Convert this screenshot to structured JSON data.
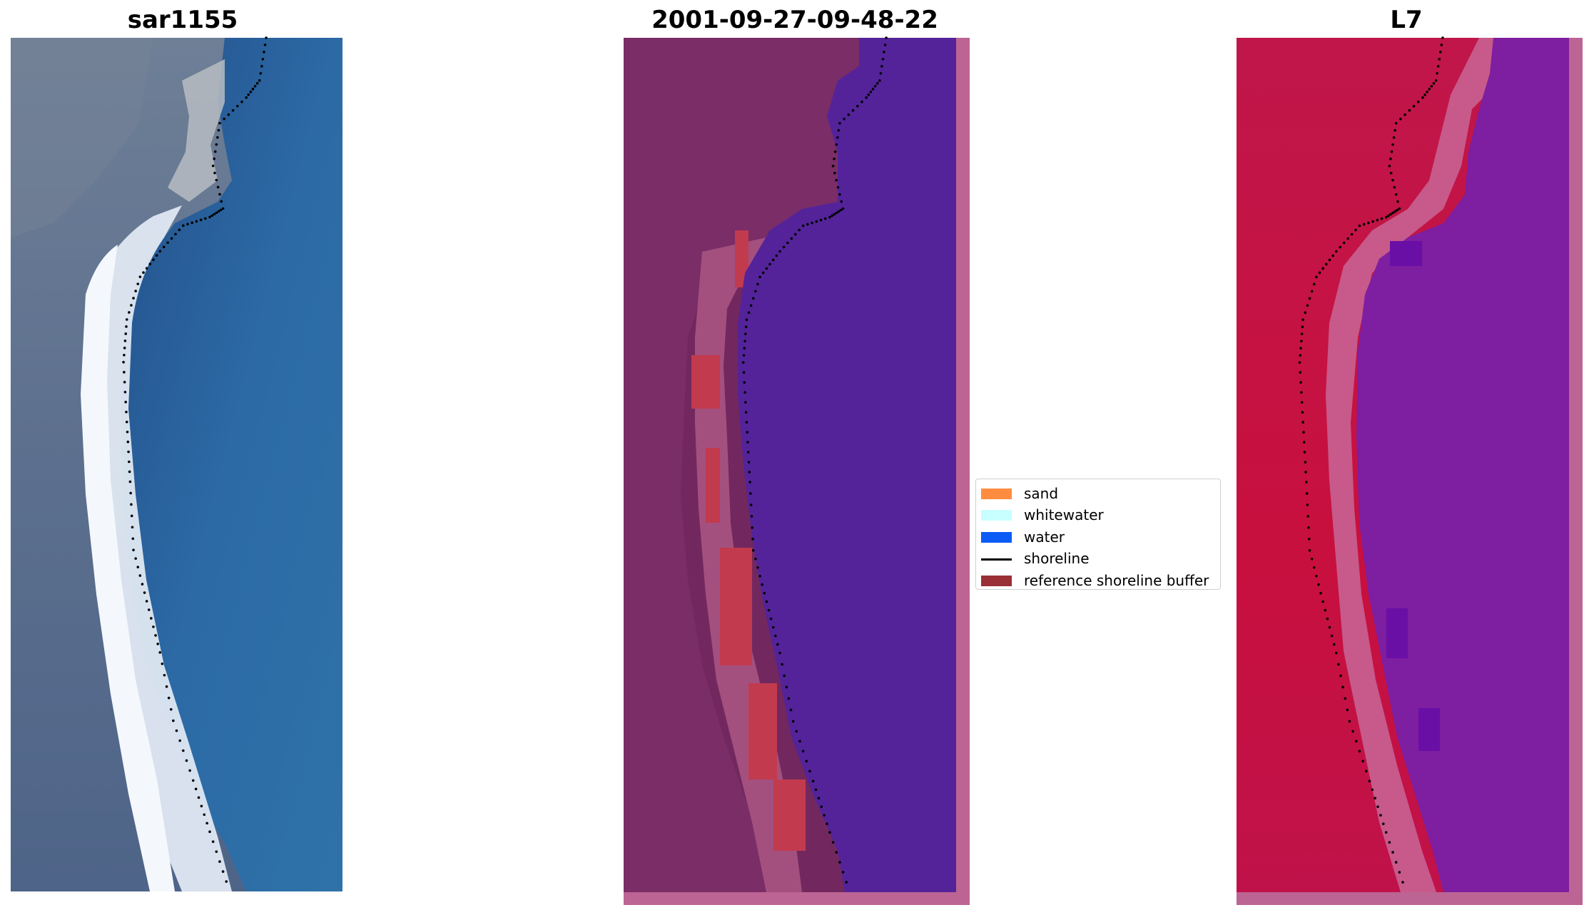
{
  "panels": [
    {
      "title": "sar1155"
    },
    {
      "title": "2001-09-27-09-48-22"
    },
    {
      "title": "L7"
    }
  ],
  "legend": {
    "placement": "center, between middle and right panel",
    "items": [
      {
        "label": "sand",
        "color": "#ff8c3f",
        "kind": "patch"
      },
      {
        "label": "whitewater",
        "color": "#c8ffff",
        "kind": "patch"
      },
      {
        "label": "water",
        "color": "#0a5cf4",
        "kind": "patch"
      },
      {
        "label": "shoreline",
        "color": "#000000",
        "kind": "line"
      },
      {
        "label": "reference shoreline buffer",
        "color": "#9a2f36",
        "kind": "patch"
      }
    ]
  },
  "colors": {
    "rgb_land": "#6f7f97",
    "rgb_water": "#2f6aa4",
    "rgb_whitewater": "#e8f0f8",
    "class_land": "#72285e",
    "class_water": "#54239a",
    "class_buffer": "#c23a4e",
    "class_edge": "#bc6494",
    "mndwi_land": "#c01040",
    "mndwi_water": "#7e1ea0",
    "mndwi_edge": "#bc6494",
    "shoreline_dots": "#000000"
  }
}
